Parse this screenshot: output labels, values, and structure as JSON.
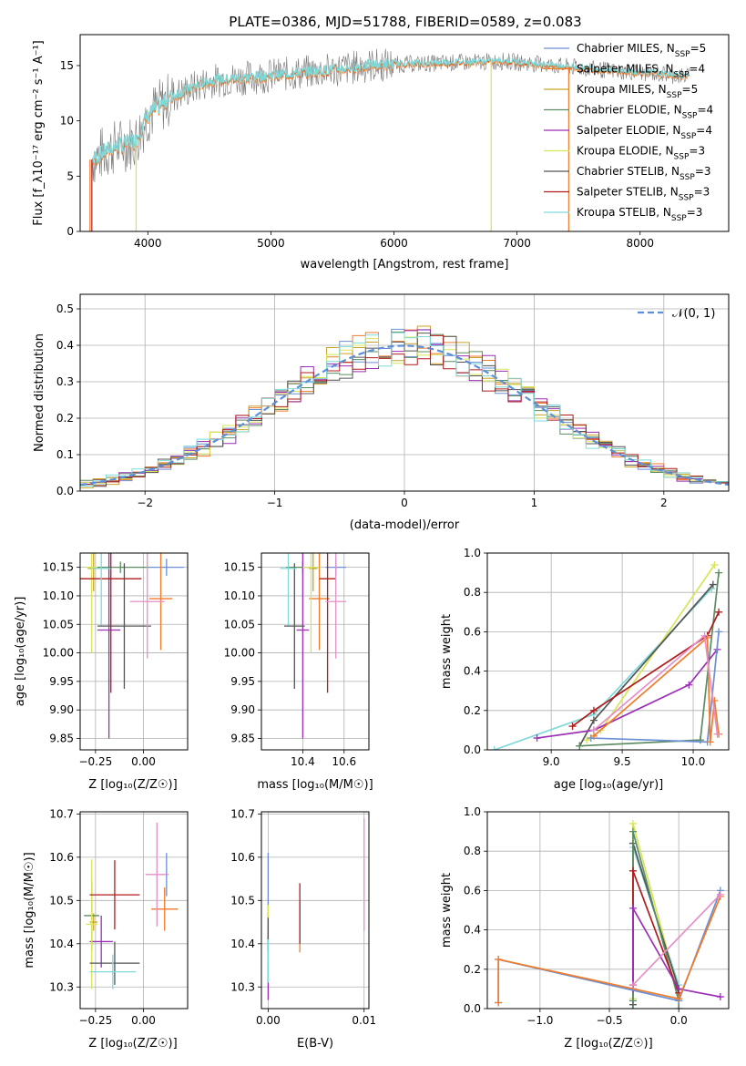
{
  "figure_title": "PLATE=0386, MJD=51788, FIBERID=0589, z=0.083",
  "colors": {
    "Chabrier MILES": "#6a8fd6",
    "Salpeter MILES": "#f07b2a",
    "Kroupa MILES": "#c9a227",
    "Chabrier ELODIE": "#5c8c62",
    "Salpeter ELODIE": "#9b2fb5",
    "Kroupa ELODIE": "#d8e458",
    "Chabrier STELIB": "#555555",
    "Salpeter STELIB": "#b11c1c",
    "Kroupa STELIB": "#7fd9d9",
    "Extra": "#e68fc7",
    "Normal": "#5b8fd9"
  },
  "chart_data": [
    {
      "id": "spectrum",
      "type": "line",
      "title": "PLATE=0386, MJD=51788, FIBERID=0589, z=0.083",
      "xlabel": "wavelength [Angstrom, rest frame]",
      "ylabel": "Flux [f_λ10⁻¹⁷ erg cm⁻² s⁻¹ A⁻¹]",
      "xlim": [
        3450,
        8720
      ],
      "ylim": [
        0,
        17.8
      ],
      "xticks": [
        4000,
        5000,
        6000,
        7000,
        8000
      ],
      "yticks": [
        0,
        5,
        10,
        15
      ],
      "legend": "right",
      "series": [
        {
          "name": "Chabrier MILES, N_SSP=5"
        },
        {
          "name": "Salpeter MILES, N_SSP=4"
        },
        {
          "name": "Kroupa MILES, N_SSP=5"
        },
        {
          "name": "Chabrier ELODIE, N_SSP=4"
        },
        {
          "name": "Salpeter ELODIE, N_SSP=4"
        },
        {
          "name": "Kroupa ELODIE, N_SSP=3"
        },
        {
          "name": "Chabrier STELIB, N_SSP=3"
        },
        {
          "name": "Salpeter STELIB, N_SSP=3"
        },
        {
          "name": "Kroupa STELIB, N_SSP=3"
        }
      ],
      "continuum": {
        "x": [
          3550,
          3700,
          3900,
          4000,
          4200,
          4500,
          4800,
          5000,
          5200,
          5500,
          5800,
          6000,
          6300,
          6600,
          6900,
          7200,
          7500,
          7800,
          8100,
          8400
        ],
        "y": [
          6.5,
          7.5,
          8.2,
          10.5,
          12.2,
          13.6,
          13.9,
          14.1,
          14.3,
          14.6,
          15.0,
          15.1,
          15.2,
          15.3,
          15.4,
          15.1,
          14.8,
          14.5,
          14.3,
          14.0
        ]
      }
    },
    {
      "id": "residuals",
      "type": "histogram",
      "xlabel": "(data-model)/error",
      "ylabel": "Normed distribution",
      "xlim": [
        -2.5,
        2.5
      ],
      "ylim": [
        0,
        0.54
      ],
      "xticks": [
        -2,
        -1,
        0,
        1,
        2
      ],
      "yticks": [
        0.0,
        0.1,
        0.2,
        0.3,
        0.4,
        0.5
      ],
      "legend": "top-right",
      "normal_label": "𝒩(0, 1)",
      "bin_width": 0.1,
      "bin_start": -2.5
    },
    {
      "id": "age_vs_Z",
      "type": "scatter",
      "xlabel": "Z [log₁₀(Z/Z☉)]",
      "ylabel": "age [log₁₀(age/yr)]",
      "xlim": [
        -0.33,
        0.23
      ],
      "ylim": [
        9.83,
        10.175
      ],
      "xticks": [
        -0.25,
        0.0
      ],
      "xticklabels": [
        "−0.25",
        "0.00"
      ],
      "yticks": [
        9.85,
        9.9,
        9.95,
        10.0,
        10.05,
        10.1,
        10.15
      ],
      "points": [
        {
          "c": "Chabrier MILES",
          "x": 0.12,
          "y": 10.15,
          "xe": 0.09,
          "ye": 0.015
        },
        {
          "c": "Salpeter MILES",
          "x": 0.09,
          "y": 10.095,
          "xe": 0.06,
          "ye": 0.09
        },
        {
          "c": "Kroupa MILES",
          "x": -0.26,
          "y": 10.148,
          "xe": 0.03,
          "ye": 0.04
        },
        {
          "c": "Chabrier ELODIE",
          "x": -0.12,
          "y": 10.15,
          "xe": 0.15,
          "ye": 0.01
        },
        {
          "c": "Salpeter ELODIE",
          "x": -0.18,
          "y": 10.04,
          "xe": 0.06,
          "ye": 0.19
        },
        {
          "c": "Kroupa ELODIE",
          "x": -0.27,
          "y": 10.15,
          "xe": 0.03,
          "ye": 0.15
        },
        {
          "c": "Chabrier STELIB",
          "x": -0.1,
          "y": 10.047,
          "xe": 0.14,
          "ye": 0.11
        },
        {
          "c": "Salpeter STELIB",
          "x": -0.17,
          "y": 10.13,
          "xe": 0.16,
          "ye": 0.2
        },
        {
          "c": "Kroupa STELIB",
          "x": -0.22,
          "y": 10.148,
          "xe": 0.05,
          "ye": 0.1
        },
        {
          "c": "Extra",
          "x": 0.02,
          "y": 10.09,
          "xe": 0.09,
          "ye": 0.1
        }
      ]
    },
    {
      "id": "age_vs_mass",
      "type": "scatter",
      "xlabel": "mass [log₁₀(M/M☉)]",
      "ylabel": "",
      "xlim": [
        10.2,
        10.72
      ],
      "ylim": [
        9.83,
        10.175
      ],
      "xticks": [
        10.4,
        10.6
      ],
      "xticklabels": [
        "10.4",
        "10.6"
      ],
      "yticks": [
        9.85,
        9.9,
        9.95,
        10.0,
        10.05,
        10.1,
        10.15
      ],
      "points": [
        {
          "c": "Chabrier MILES",
          "x": 10.56,
          "y": 10.15,
          "xe": 0.05,
          "ye": 0.015
        },
        {
          "c": "Salpeter MILES",
          "x": 10.48,
          "y": 10.095,
          "xe": 0.05,
          "ye": 0.09
        },
        {
          "c": "Kroupa MILES",
          "x": 10.45,
          "y": 10.148,
          "xe": 0.02,
          "ye": 0.04
        },
        {
          "c": "Chabrier ELODIE",
          "x": 10.4,
          "y": 10.15,
          "xe": 0.08,
          "ye": 0.01
        },
        {
          "c": "Salpeter ELODIE",
          "x": 10.4,
          "y": 10.04,
          "xe": 0.03,
          "ye": 0.19
        },
        {
          "c": "Kroupa ELODIE",
          "x": 10.44,
          "y": 10.15,
          "xe": 0.04,
          "ye": 0.15
        },
        {
          "c": "Chabrier STELIB",
          "x": 10.36,
          "y": 10.047,
          "xe": 0.05,
          "ye": 0.11
        },
        {
          "c": "Salpeter STELIB",
          "x": 10.52,
          "y": 10.13,
          "xe": 0.04,
          "ye": 0.2
        },
        {
          "c": "Kroupa STELIB",
          "x": 10.33,
          "y": 10.148,
          "xe": 0.04,
          "ye": 0.1
        },
        {
          "c": "Extra",
          "x": 10.56,
          "y": 10.09,
          "xe": 0.05,
          "ye": 0.1
        }
      ]
    },
    {
      "id": "mass_weight_vs_age",
      "type": "line",
      "xlabel": "age [log₁₀(age/yr)]",
      "ylabel": "mass weight",
      "xlim": [
        8.55,
        10.25
      ],
      "ylim": [
        0,
        1.0
      ],
      "xticks": [
        9.0,
        9.5,
        10.0
      ],
      "yticks": [
        0.0,
        0.2,
        0.4,
        0.6,
        0.8,
        1.0
      ],
      "series": [
        {
          "c": "Kroupa STELIB",
          "x": [
            8.6,
            9.3,
            10.13
          ],
          "y": [
            0.0,
            0.18,
            0.82
          ]
        },
        {
          "c": "Kroupa ELODIE",
          "x": [
            9.25,
            9.35,
            10.15
          ],
          "y": [
            0.05,
            0.1,
            0.94
          ]
        },
        {
          "c": "Chabrier STELIB",
          "x": [
            9.2,
            9.3,
            10.14
          ],
          "y": [
            0.02,
            0.15,
            0.84
          ]
        },
        {
          "c": "Chabrier ELODIE",
          "x": [
            9.2,
            10.05,
            10.18
          ],
          "y": [
            0.02,
            0.05,
            0.9
          ]
        },
        {
          "c": "Salpeter STELIB",
          "x": [
            9.15,
            9.3,
            10.1,
            10.18
          ],
          "y": [
            0.12,
            0.2,
            0.58,
            0.7
          ]
        },
        {
          "c": "Salpeter ELODIE",
          "x": [
            8.9,
            9.3,
            9.97,
            10.17
          ],
          "y": [
            0.06,
            0.1,
            0.33,
            0.51
          ]
        },
        {
          "c": "Chabrier MILES",
          "x": [
            9.28,
            10.1,
            10.18
          ],
          "y": [
            0.06,
            0.04,
            0.6
          ]
        },
        {
          "c": "Salpeter MILES",
          "x": [
            9.3,
            10.1,
            10.12,
            10.15,
            10.18
          ],
          "y": [
            0.07,
            0.57,
            0.04,
            0.25,
            0.08
          ]
        },
        {
          "c": "Extra",
          "x": [
            9.3,
            10.08,
            10.17
          ],
          "y": [
            0.1,
            0.58,
            0.08
          ]
        }
      ]
    },
    {
      "id": "mass_vs_Z",
      "type": "scatter",
      "xlabel": "Z [log₁₀(Z/Z☉)]",
      "ylabel": "mass [log₁₀(M/M☉)]",
      "xlim": [
        -0.33,
        0.23
      ],
      "ylim": [
        10.25,
        10.705
      ],
      "xticks": [
        -0.25,
        0.0
      ],
      "xticklabels": [
        "−0.25",
        "0.00"
      ],
      "yticks": [
        10.3,
        10.4,
        10.5,
        10.6,
        10.7
      ],
      "points": [
        {
          "c": "Chabrier MILES",
          "x": 0.12,
          "y": 10.56,
          "xe": 0.01,
          "ye": 0.05
        },
        {
          "c": "Salpeter MILES",
          "x": 0.11,
          "y": 10.48,
          "xe": 0.07,
          "ye": 0.05
        },
        {
          "c": "Kroupa MILES",
          "x": -0.26,
          "y": 10.45,
          "xe": 0.02,
          "ye": 0.02
        },
        {
          "c": "Chabrier ELODIE",
          "x": -0.27,
          "y": 10.465,
          "xe": 0.04,
          "ye": 0.08
        },
        {
          "c": "Salpeter ELODIE",
          "x": -0.22,
          "y": 10.405,
          "xe": 0.06,
          "ye": 0.06
        },
        {
          "c": "Kroupa ELODIE",
          "x": -0.27,
          "y": 10.445,
          "xe": 0.03,
          "ye": 0.15
        },
        {
          "c": "Chabrier STELIB",
          "x": -0.15,
          "y": 10.355,
          "xe": 0.13,
          "ye": 0.05
        },
        {
          "c": "Salpeter STELIB",
          "x": -0.15,
          "y": 10.513,
          "xe": 0.13,
          "ye": 0.08
        },
        {
          "c": "Kroupa STELIB",
          "x": -0.16,
          "y": 10.335,
          "xe": 0.12,
          "ye": 0.04
        },
        {
          "c": "Extra",
          "x": 0.07,
          "y": 10.56,
          "xe": 0.06,
          "ye": 0.12
        }
      ]
    },
    {
      "id": "mass_vs_ebv",
      "type": "scatter",
      "xlabel": "E(B-V)",
      "ylabel": "",
      "xlim": [
        -0.0007,
        0.0105
      ],
      "ylim": [
        10.25,
        10.705
      ],
      "xticks": [
        0.0,
        0.01
      ],
      "xticklabels": [
        "0.00",
        "0.01"
      ],
      "yticks": [
        10.3,
        10.4,
        10.5,
        10.6,
        10.7
      ],
      "points": [
        {
          "c": "Chabrier MILES",
          "x": 0.0,
          "y": 10.55,
          "xe": 0,
          "ye": 0.06
        },
        {
          "c": "Kroupa MILES",
          "x": 0.0,
          "y": 10.45,
          "xe": 0,
          "ye": 0.04
        },
        {
          "c": "Chabrier ELODIE",
          "x": 0.0,
          "y": 10.42,
          "xe": 0,
          "ye": 0.05
        },
        {
          "c": "Salpeter ELODIE",
          "x": 0.0,
          "y": 10.32,
          "xe": 0,
          "ye": 0.05
        },
        {
          "c": "Kroupa ELODIE",
          "x": 0.0,
          "y": 10.46,
          "xe": 0,
          "ye": 0.03
        },
        {
          "c": "Chabrier STELIB",
          "x": 0.0,
          "y": 10.42,
          "xe": 0,
          "ye": 0.04
        },
        {
          "c": "Kroupa STELIB",
          "x": 0.0,
          "y": 10.36,
          "xe": 0,
          "ye": 0.05
        },
        {
          "c": "Salpeter MILES",
          "x": 0.0033,
          "y": 10.44,
          "xe": 0,
          "ye": 0.06
        },
        {
          "c": "Salpeter STELIB",
          "x": 0.0033,
          "y": 10.47,
          "xe": 0,
          "ye": 0.07
        },
        {
          "c": "Extra",
          "x": 0.01,
          "y": 10.56,
          "xe": 0,
          "ye": 0.13
        }
      ]
    },
    {
      "id": "mass_weight_vs_Z",
      "type": "line",
      "xlabel": "Z [log₁₀(Z/Z☉)]",
      "ylabel": "mass weight",
      "xlim": [
        -1.38,
        0.36
      ],
      "ylim": [
        0,
        1.0
      ],
      "xticks": [
        -1.0,
        -0.5,
        0.0
      ],
      "yticks": [
        0.0,
        0.2,
        0.4,
        0.6,
        0.8,
        1.0
      ],
      "series": [
        {
          "c": "Kroupa STELIB",
          "x": [
            -0.33,
            -0.33,
            0.0
          ],
          "y": [
            0.0,
            0.82,
            0.12
          ]
        },
        {
          "c": "Kroupa ELODIE",
          "x": [
            -0.33,
            -0.33,
            0.0
          ],
          "y": [
            0.05,
            0.94,
            0.08
          ]
        },
        {
          "c": "Chabrier STELIB",
          "x": [
            -0.33,
            -0.33,
            0.0
          ],
          "y": [
            0.02,
            0.84,
            0.1
          ]
        },
        {
          "c": "Chabrier ELODIE",
          "x": [
            -0.33,
            -0.33,
            0.0,
            0.0
          ],
          "y": [
            0.04,
            0.9,
            0.04,
            0.0
          ]
        },
        {
          "c": "Salpeter STELIB",
          "x": [
            -0.33,
            -0.33,
            0.0
          ],
          "y": [
            0.12,
            0.7,
            0.08
          ]
        },
        {
          "c": "Salpeter ELODIE",
          "x": [
            -0.33,
            -0.33,
            0.0,
            0.3
          ],
          "y": [
            0.1,
            0.51,
            0.1,
            0.06
          ]
        },
        {
          "c": "Chabrier MILES",
          "x": [
            -1.3,
            -1.3,
            0.0,
            0.3
          ],
          "y": [
            0.03,
            0.25,
            0.04,
            0.6
          ]
        },
        {
          "c": "Salpeter MILES",
          "x": [
            -1.3,
            -1.3,
            0.0,
            0.3
          ],
          "y": [
            0.03,
            0.25,
            0.05,
            0.57
          ]
        },
        {
          "c": "Extra",
          "x": [
            -0.33,
            0.3
          ],
          "y": [
            0.12,
            0.58
          ]
        }
      ]
    }
  ]
}
